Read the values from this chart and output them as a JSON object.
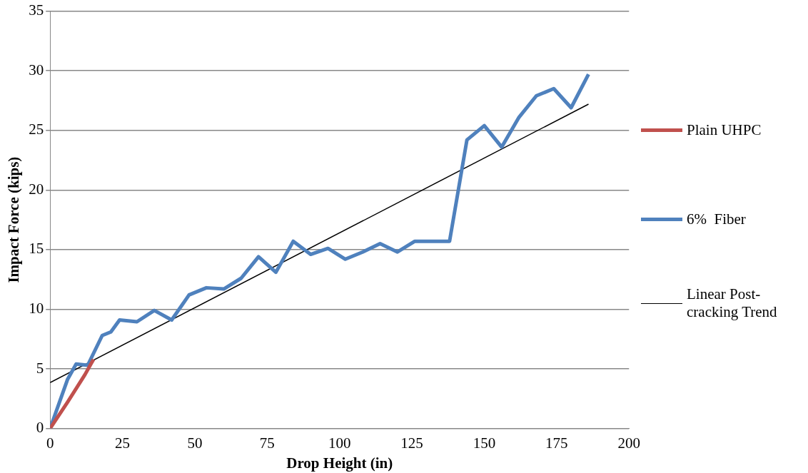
{
  "chart_data": {
    "type": "line",
    "xlabel": "Drop Height (in)",
    "ylabel": "Impact Force (kips)",
    "xlim": [
      0,
      200
    ],
    "xticks": [
      0,
      25,
      50,
      75,
      100,
      125,
      150,
      175,
      200
    ],
    "ylim": [
      0,
      35
    ],
    "yticks": [
      0,
      5,
      10,
      15,
      20,
      25,
      30,
      35
    ],
    "grid": "y",
    "legend": "right",
    "marker": "none",
    "series": [
      {
        "name": "Plain UHPC",
        "color": "#c0504d",
        "x": [
          0,
          6,
          12,
          15
        ],
        "values": [
          0,
          2.2,
          4.5,
          5.8
        ]
      },
      {
        "name": "6%  Fiber",
        "color": "#4f81bd",
        "x": [
          0,
          6,
          9,
          13,
          18,
          21,
          24,
          30,
          36,
          42,
          48,
          54,
          60,
          66,
          72,
          78,
          84,
          90,
          96,
          102,
          108,
          114,
          120,
          126,
          132,
          138,
          144,
          150,
          156,
          162,
          168,
          174,
          180,
          186
        ],
        "values": [
          0,
          4.1,
          5.4,
          5.3,
          7.8,
          8.1,
          9.1,
          8.95,
          9.9,
          9.1,
          11.2,
          11.8,
          11.7,
          12.6,
          14.4,
          13.1,
          15.7,
          14.6,
          15.1,
          14.2,
          14.8,
          15.5,
          14.8,
          15.7,
          15.7,
          15.7,
          24.2,
          25.4,
          23.6,
          26.1,
          27.9,
          28.5,
          26.9,
          29.7
        ]
      },
      {
        "name": "Linear Post-cracking Trend",
        "color": "#000000",
        "x": [
          0,
          186
        ],
        "values": [
          3.85,
          27.2
        ]
      }
    ]
  }
}
